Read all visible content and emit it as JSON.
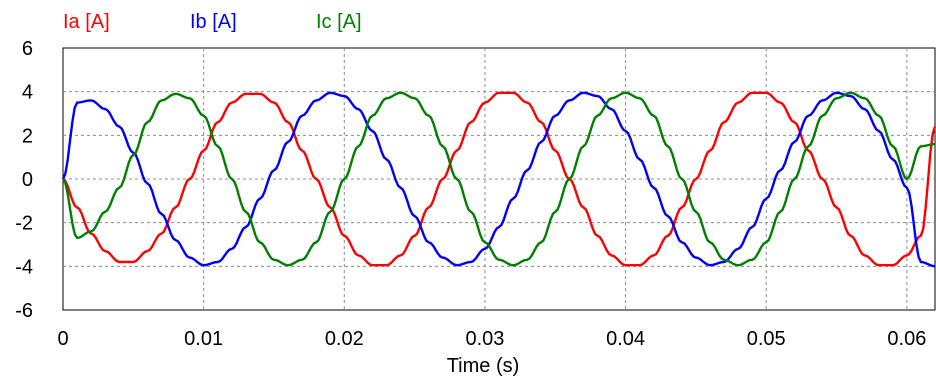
{
  "chart_data": {
    "type": "line",
    "title": "",
    "xlabel": "Time (s)",
    "ylabel": "",
    "xlim": [
      0,
      0.062
    ],
    "ylim": [
      -6,
      6
    ],
    "x_ticks": [
      0,
      0.01,
      0.02,
      0.03,
      0.04,
      0.05,
      0.06
    ],
    "x_tick_labels": [
      "0",
      "0.01",
      "0.02",
      "0.03",
      "0.04",
      "0.05",
      "0.06"
    ],
    "y_ticks": [
      6,
      4,
      2,
      0,
      -2,
      -4,
      -6
    ],
    "y_tick_labels": [
      "6",
      "4",
      "2",
      "0",
      "-2",
      "-4",
      "-6"
    ],
    "grid": true,
    "legend_position": "top-left",
    "x": [
      0,
      0.001,
      0.002,
      0.003,
      0.004,
      0.005,
      0.006,
      0.007,
      0.008,
      0.009,
      0.01,
      0.011,
      0.012,
      0.013,
      0.014,
      0.015,
      0.016,
      0.017,
      0.018,
      0.019,
      0.02,
      0.021,
      0.022,
      0.023,
      0.024,
      0.025,
      0.026,
      0.027,
      0.028,
      0.029,
      0.03,
      0.031,
      0.032,
      0.033,
      0.034,
      0.035,
      0.036,
      0.037,
      0.038,
      0.039,
      0.04,
      0.041,
      0.042,
      0.043,
      0.044,
      0.045,
      0.046,
      0.047,
      0.048,
      0.049,
      0.05,
      0.051,
      0.052,
      0.053,
      0.054,
      0.055,
      0.056,
      0.057,
      0.058,
      0.059,
      0.06,
      0.061,
      0.062
    ],
    "series": [
      {
        "name": "Ia [A]",
        "color": "#ff0000",
        "values": [
          0,
          -1.3,
          -2.5,
          -3.3,
          -3.8,
          -3.8,
          -3.3,
          -2.5,
          -1.3,
          0,
          1.3,
          2.6,
          3.5,
          3.9,
          3.9,
          3.5,
          2.6,
          1.3,
          0,
          -1.3,
          -2.6,
          -3.5,
          -3.95,
          -3.95,
          -3.5,
          -2.6,
          -1.3,
          0,
          1.3,
          2.6,
          3.5,
          3.95,
          3.95,
          3.5,
          2.6,
          1.3,
          0,
          -1.3,
          -2.6,
          -3.5,
          -3.95,
          -3.95,
          -3.5,
          -2.6,
          -1.3,
          0,
          1.3,
          2.6,
          3.5,
          3.95,
          3.95,
          3.5,
          2.6,
          1.3,
          0,
          -1.3,
          -2.6,
          -3.5,
          -3.95,
          -3.95,
          -3.5,
          -2.6,
          2.4
        ]
      },
      {
        "name": "Ib [A]",
        "color": "#0000ff",
        "values": [
          0,
          3.5,
          3.6,
          3.2,
          2.4,
          1.2,
          -0.2,
          -1.6,
          -2.8,
          -3.6,
          -3.95,
          -3.8,
          -3.2,
          -2.2,
          -0.9,
          0.4,
          1.7,
          2.9,
          3.6,
          3.95,
          3.8,
          3.2,
          2.2,
          0.9,
          -0.4,
          -1.7,
          -2.9,
          -3.6,
          -3.95,
          -3.8,
          -3.2,
          -2.2,
          -0.9,
          0.4,
          1.7,
          2.9,
          3.6,
          3.95,
          3.8,
          3.2,
          2.2,
          0.9,
          -0.4,
          -1.7,
          -2.9,
          -3.6,
          -3.95,
          -3.8,
          -3.2,
          -2.2,
          -0.9,
          0.4,
          1.7,
          2.9,
          3.6,
          3.95,
          3.8,
          3.2,
          2.2,
          0.9,
          -0.4,
          -3.8,
          -4.0
        ]
      },
      {
        "name": "Ic [A]",
        "color": "#008000",
        "values": [
          0,
          -2.7,
          -2.4,
          -1.5,
          -0.4,
          1.1,
          2.6,
          3.6,
          3.9,
          3.7,
          2.9,
          1.5,
          0,
          -1.5,
          -2.9,
          -3.7,
          -3.95,
          -3.7,
          -2.9,
          -1.5,
          0,
          1.5,
          2.9,
          3.7,
          3.95,
          3.7,
          2.9,
          1.5,
          0,
          -1.5,
          -2.9,
          -3.7,
          -3.95,
          -3.7,
          -2.9,
          -1.5,
          0,
          1.5,
          2.9,
          3.7,
          3.95,
          3.7,
          2.9,
          1.5,
          0,
          -1.5,
          -2.9,
          -3.7,
          -3.95,
          -3.7,
          -2.9,
          -1.5,
          0,
          1.5,
          2.9,
          3.7,
          3.95,
          3.7,
          2.9,
          1.5,
          0,
          1.5,
          1.6
        ]
      }
    ]
  }
}
